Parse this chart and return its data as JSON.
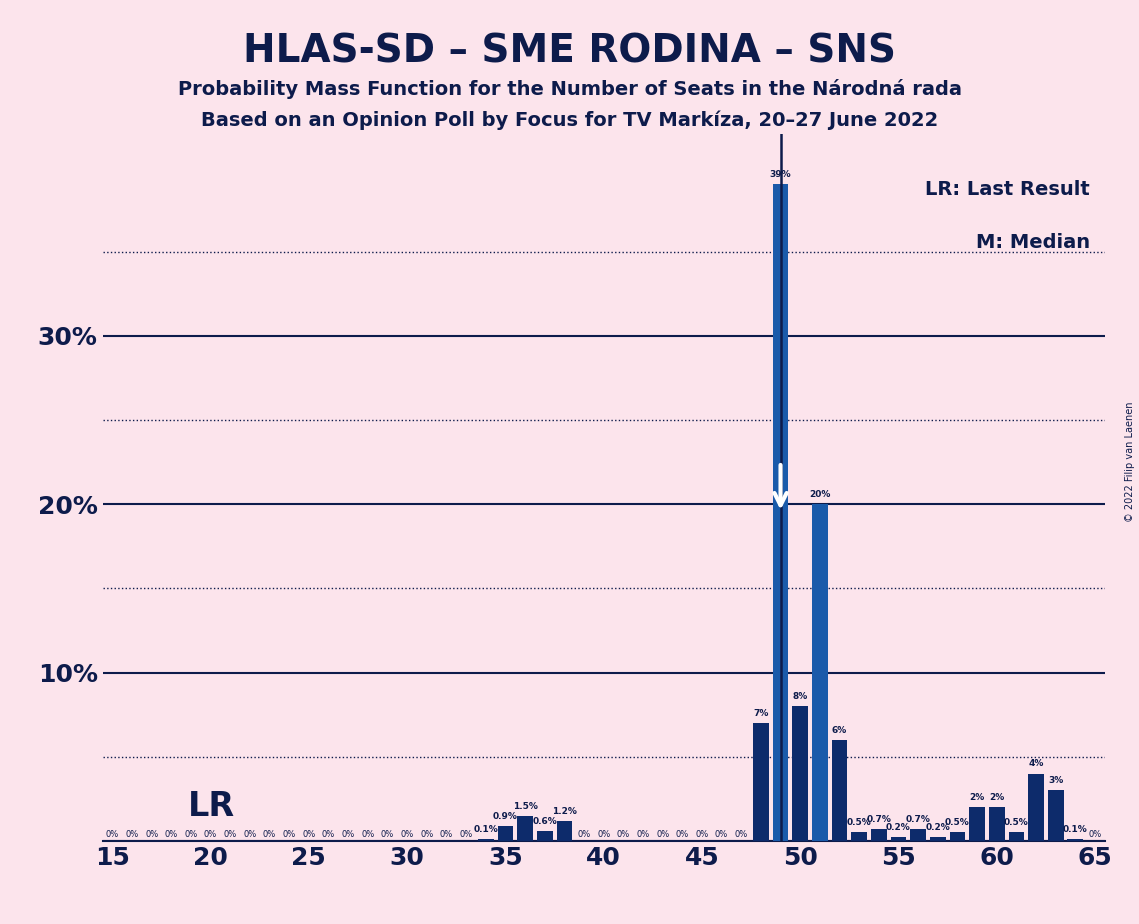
{
  "title": "HLAS-SD – SME RODINA – SNS",
  "subtitle1": "Probability Mass Function for the Number of Seats in the Národná rada",
  "subtitle2": "Based on an Opinion Poll by Focus for TV Markíza, 20–27 June 2022",
  "copyright": "© 2022 Filip van Laenen",
  "background_color": "#fce4ec",
  "bar_color_dark": "#0d2b6b",
  "bar_color_medium": "#1a5aaa",
  "x_min": 15,
  "x_max": 65,
  "y_min": 0,
  "y_max": 0.42,
  "lr_value": 49,
  "median_value": 49,
  "seats": [
    15,
    16,
    17,
    18,
    19,
    20,
    21,
    22,
    23,
    24,
    25,
    26,
    27,
    28,
    29,
    30,
    31,
    32,
    33,
    34,
    35,
    36,
    37,
    38,
    39,
    40,
    41,
    42,
    43,
    44,
    45,
    46,
    47,
    48,
    49,
    50,
    51,
    52,
    53,
    54,
    55,
    56,
    57,
    58,
    59,
    60,
    61,
    62,
    63,
    64,
    65
  ],
  "probabilities": [
    0,
    0,
    0,
    0,
    0,
    0,
    0,
    0,
    0,
    0,
    0,
    0,
    0,
    0,
    0,
    0,
    0,
    0,
    0,
    0.001,
    0.009,
    0.015,
    0.006,
    0.012,
    0.0,
    0.0,
    0.0,
    0.0,
    0.0,
    0.0,
    0.0,
    0.0,
    0.0,
    0.07,
    0.39,
    0.08,
    0.2,
    0.06,
    0.005,
    0.007,
    0.002,
    0.007,
    0.002,
    0.005,
    0.02,
    0.02,
    0.005,
    0.04,
    0.03,
    0.001,
    0.0
  ],
  "bright_seats": [
    49,
    51
  ],
  "yticks": [
    0.0,
    0.1,
    0.2,
    0.3
  ],
  "ytick_labels": [
    "",
    "10%",
    "20%",
    "30%"
  ],
  "dotted_lines": [
    0.05,
    0.15,
    0.25,
    0.35
  ],
  "lr_label": "LR",
  "annotation_fontsize": 6.5,
  "title_fontsize": 28,
  "subtitle_fontsize": 14,
  "legend_fontsize": 14,
  "tick_fontsize": 18,
  "prob_labels": {
    "34": "0.1%",
    "35": "0.9%",
    "36": "1.5%",
    "37": "0.6%",
    "38": "1.2%",
    "48": "7%",
    "49": "39%",
    "50": "8%",
    "51": "20%",
    "52": "6%",
    "53": "0.5%",
    "54": "0.7%",
    "55": "0.2%",
    "56": "0.7%",
    "57": "0.2%",
    "58": "0.5%",
    "59": "2%",
    "60": "2%",
    "61": "0.5%",
    "62": "4%",
    "63": "3%",
    "64": "0.1%"
  },
  "zero_seats": [
    15,
    16,
    17,
    18,
    19,
    20,
    21,
    22,
    23,
    24,
    25,
    26,
    27,
    28,
    29,
    30,
    31,
    32,
    33,
    39,
    40,
    41,
    42,
    43,
    44,
    45,
    46,
    47,
    65
  ]
}
